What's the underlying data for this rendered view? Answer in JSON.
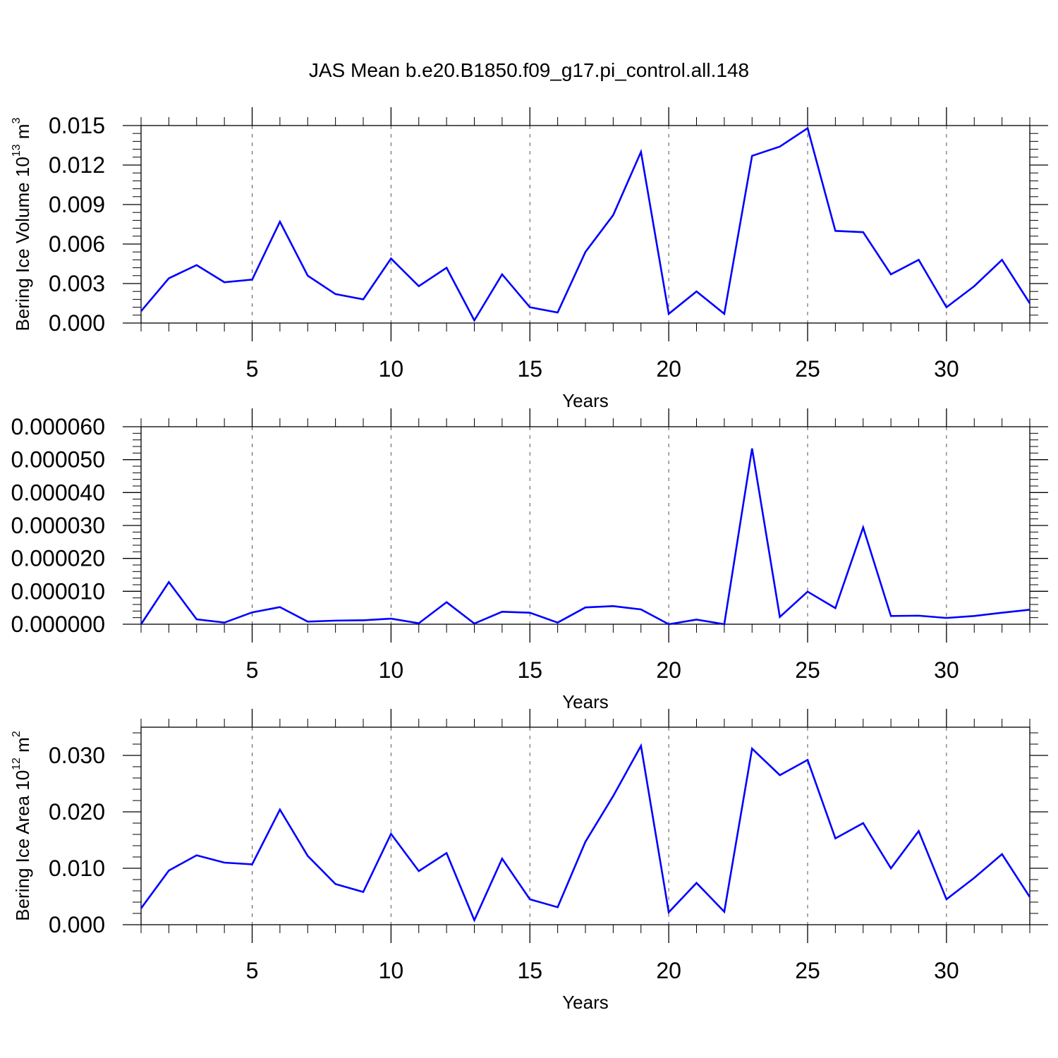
{
  "title": "JAS Mean b.e20.B1850.f09_g17.pi_control.all.148",
  "colors": {
    "line": "#0000ff",
    "axis": "#000000",
    "grid": "#555555"
  },
  "chart_data": [
    {
      "type": "line",
      "title": "",
      "xlabel": "Years",
      "ylabel": "Bering Ice Volume 10",
      "ylabel_exponent": "13",
      "ylabel_unit": " m",
      "ylabel_unit_exponent": "3",
      "xlim": [
        1,
        33
      ],
      "ylim": [
        0,
        0.015
      ],
      "xticks": [
        5,
        10,
        15,
        20,
        25,
        30
      ],
      "xtick_labels": [
        "5",
        "10",
        "15",
        "20",
        "25",
        "30"
      ],
      "yticks": [
        0,
        0.003,
        0.006,
        0.009,
        0.012,
        0.015
      ],
      "ytick_labels": [
        "0.000",
        "0.003",
        "0.006",
        "0.009",
        "0.012",
        "0.015"
      ],
      "x_grid": true,
      "x": [
        1,
        2,
        3,
        4,
        5,
        6,
        7,
        8,
        9,
        10,
        11,
        12,
        13,
        14,
        15,
        16,
        17,
        18,
        19,
        20,
        21,
        22,
        23,
        24,
        25,
        26,
        27,
        28,
        29,
        30,
        31,
        32,
        33
      ],
      "series": [
        {
          "values": [
            0.0009,
            0.0034,
            0.0044,
            0.0031,
            0.0033,
            0.0077,
            0.0036,
            0.0022,
            0.0018,
            0.0049,
            0.0028,
            0.0042,
            0.0002,
            0.0037,
            0.0012,
            0.0008,
            0.0054,
            0.0082,
            0.013,
            0.0007,
            0.0024,
            0.0007,
            0.0127,
            0.0134,
            0.0148,
            0.007,
            0.0069,
            0.0037,
            0.0048,
            0.0012,
            0.0028,
            0.0048,
            0.0015
          ]
        }
      ]
    },
    {
      "type": "line",
      "title": "",
      "xlabel": "Years",
      "ylabel": "",
      "xlim": [
        1,
        33
      ],
      "ylim": [
        0,
        6e-05
      ],
      "xticks": [
        5,
        10,
        15,
        20,
        25,
        30
      ],
      "xtick_labels": [
        "5",
        "10",
        "15",
        "20",
        "25",
        "30"
      ],
      "yticks": [
        0,
        1e-05,
        2e-05,
        3e-05,
        4e-05,
        5e-05,
        6e-05
      ],
      "ytick_labels": [
        "0.000000",
        "0.000010",
        "0.000020",
        "0.000030",
        "0.000040",
        "0.000050",
        "0.000060"
      ],
      "x_grid": true,
      "x": [
        1,
        2,
        3,
        4,
        5,
        6,
        7,
        8,
        9,
        10,
        11,
        12,
        13,
        14,
        15,
        16,
        17,
        18,
        19,
        20,
        21,
        22,
        23,
        24,
        25,
        26,
        27,
        28,
        29,
        30,
        31,
        32,
        33
      ],
      "series": [
        {
          "values": [
            0.0,
            1.28e-05,
            1.5e-06,
            5e-07,
            3.6e-06,
            5.2e-06,
            8e-07,
            1.1e-06,
            1.2e-06,
            1.7e-06,
            3e-07,
            6.7e-06,
            2e-07,
            3.8e-06,
            3.5e-06,
            5e-07,
            5.1e-06,
            5.5e-06,
            4.5e-06,
            0.0,
            1.4e-06,
            0.0,
            5.34e-05,
            2.2e-06,
            9.9e-06,
            4.9e-06,
            2.94e-05,
            2.5e-06,
            2.6e-06,
            1.9e-06,
            2.5e-06,
            3.5e-06,
            4.4e-06
          ]
        }
      ]
    },
    {
      "type": "line",
      "title": "",
      "xlabel": "Years",
      "ylabel": "Bering Ice Area 10",
      "ylabel_exponent": "12",
      "ylabel_unit": " m",
      "ylabel_unit_exponent": "2",
      "xlim": [
        1,
        33
      ],
      "ylim": [
        0,
        0.035
      ],
      "xticks": [
        5,
        10,
        15,
        20,
        25,
        30
      ],
      "xtick_labels": [
        "5",
        "10",
        "15",
        "20",
        "25",
        "30"
      ],
      "yticks": [
        0,
        0.01,
        0.02,
        0.03
      ],
      "ytick_labels": [
        "0.000",
        "0.010",
        "0.020",
        "0.030"
      ],
      "x_grid": true,
      "x": [
        1,
        2,
        3,
        4,
        5,
        6,
        7,
        8,
        9,
        10,
        11,
        12,
        13,
        14,
        15,
        16,
        17,
        18,
        19,
        20,
        21,
        22,
        23,
        24,
        25,
        26,
        27,
        28,
        29,
        30,
        31,
        32,
        33
      ],
      "series": [
        {
          "values": [
            0.0029,
            0.0096,
            0.0123,
            0.011,
            0.0107,
            0.0204,
            0.0122,
            0.0072,
            0.0058,
            0.0161,
            0.0095,
            0.0127,
            0.0008,
            0.0117,
            0.0045,
            0.0031,
            0.0147,
            0.0228,
            0.0317,
            0.0022,
            0.0074,
            0.0023,
            0.0312,
            0.0265,
            0.0292,
            0.0153,
            0.018,
            0.01,
            0.0166,
            0.0045,
            0.0083,
            0.0125,
            0.0049
          ]
        }
      ]
    }
  ]
}
